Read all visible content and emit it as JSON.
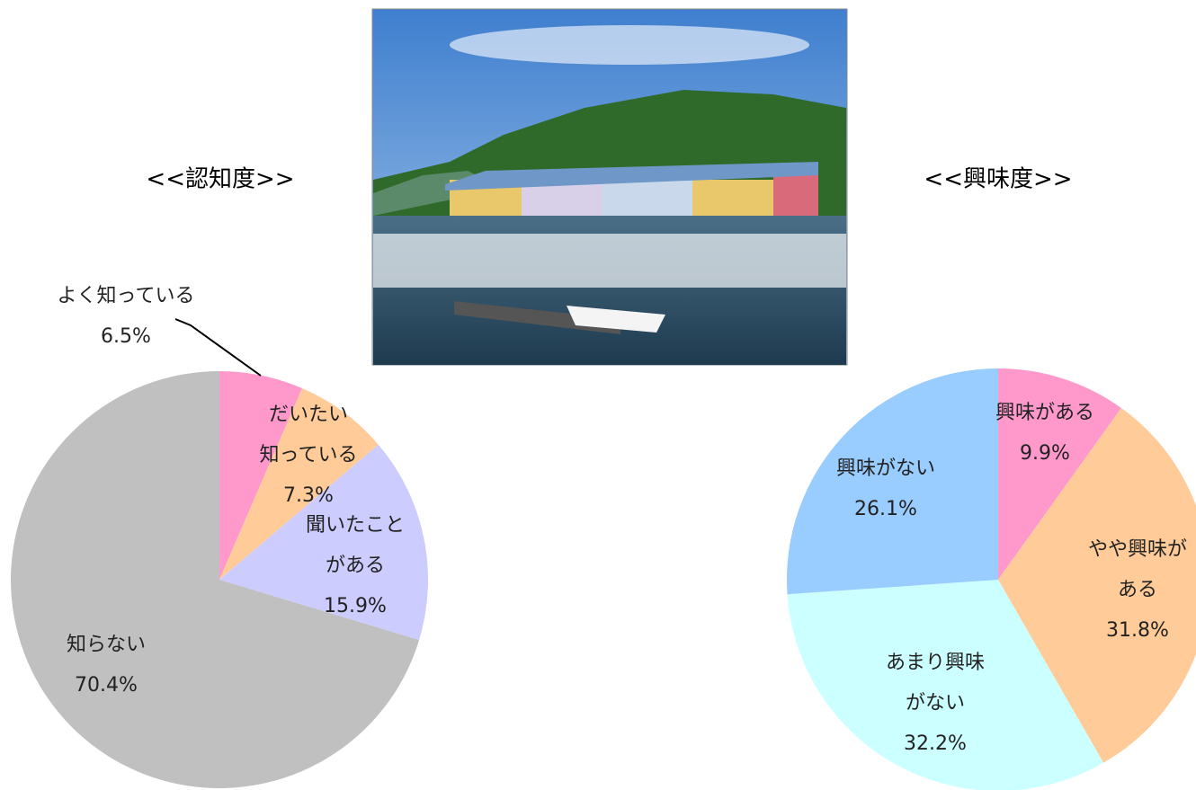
{
  "chart_data": [
    {
      "type": "pie",
      "title": "<<認知度>>",
      "categories": [
        [
          "よく知っている"
        ],
        [
          "だいたい",
          "知っている"
        ],
        [
          "聞いたこと",
          "がある"
        ],
        [
          "知らない"
        ]
      ],
      "values": [
        6.5,
        7.3,
        15.9,
        70.4
      ],
      "value_labels": [
        "6.5%",
        "7.3%",
        "15.9%",
        "70.4%"
      ],
      "colors": [
        "#FF99CC",
        "#FFCC99",
        "#CCCCFF",
        "#C0C0C0"
      ]
    },
    {
      "type": "pie",
      "title": "<<興味度>>",
      "categories": [
        [
          "興味がある"
        ],
        [
          "やや興味が",
          "ある"
        ],
        [
          "あまり興味",
          "がない"
        ],
        [
          "興味がない"
        ]
      ],
      "values": [
        9.9,
        31.8,
        32.2,
        26.1
      ],
      "value_labels": [
        "9.9%",
        "31.8%",
        "32.2%",
        "26.1%"
      ],
      "colors": [
        "#FF99CC",
        "#FFCC99",
        "#CCFFFF",
        "#99CCFF"
      ]
    }
  ]
}
